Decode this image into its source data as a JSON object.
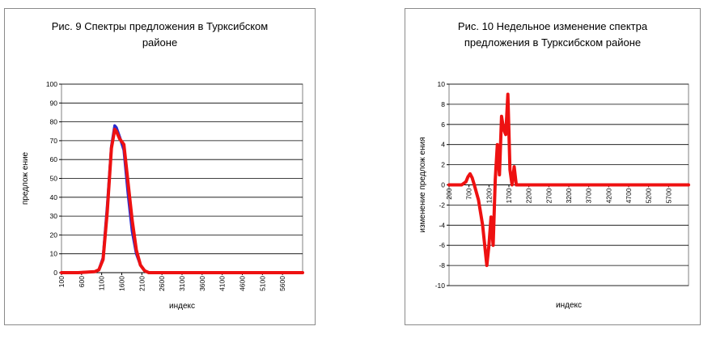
{
  "chart_data": [
    {
      "type": "line",
      "title_lines": [
        "Рис. 9 Спектры предложения в Турксибском",
        "районе"
      ],
      "xlabel": "индекс",
      "ylabel": "предлож ение",
      "ylim": [
        0,
        100
      ],
      "yticks": [
        "0",
        "10",
        "20",
        "30",
        "40",
        "50",
        "60",
        "70",
        "80",
        "90",
        "100"
      ],
      "xlim": [
        100,
        5900
      ],
      "xticks": [
        "100",
        "600",
        "1100",
        "1600",
        "2100",
        "2600",
        "3100",
        "3600",
        "4100",
        "4600",
        "5100",
        "5600"
      ],
      "grid": true,
      "colors": [
        "#2b2bcc",
        "#ee1111"
      ],
      "series": [
        {
          "color": "#2b2bcc",
          "x": [
            100,
            500,
            900,
            1000,
            1100,
            1200,
            1300,
            1380,
            1420,
            1500,
            1600,
            1700,
            1800,
            1900,
            2000,
            2100,
            2200,
            2600,
            3600,
            5900
          ],
          "y": [
            0,
            0,
            0.5,
            1.5,
            8,
            35,
            67,
            78,
            77,
            72,
            65,
            42,
            22,
            10,
            4,
            1,
            0,
            0,
            0,
            0
          ]
        },
        {
          "color": "#ee1111",
          "x": [
            100,
            500,
            900,
            1000,
            1100,
            1200,
            1300,
            1380,
            1420,
            1500,
            1600,
            1700,
            1800,
            1900,
            2000,
            2100,
            2200,
            2600,
            3600,
            5900
          ],
          "y": [
            0,
            0,
            0.5,
            1.5,
            7,
            32,
            66,
            76,
            75,
            71,
            68,
            48,
            28,
            12,
            4,
            1,
            0,
            0,
            0,
            0
          ]
        }
      ]
    },
    {
      "type": "line",
      "title_lines": [
        "Рис. 10 Недельное изменение спектра",
        "предложения в Турксибском районе"
      ],
      "xlabel": "индекс",
      "ylabel": "изменение предлож ения",
      "ylim": [
        -10,
        10
      ],
      "yticks": [
        "-10",
        "-8",
        "-6",
        "-4",
        "-2",
        "0",
        "2",
        "4",
        "6",
        "8",
        "10"
      ],
      "xlim": [
        200,
        5900
      ],
      "xticks": [
        "200",
        "700",
        "1200",
        "1700",
        "2200",
        "2700",
        "3200",
        "3700",
        "4200",
        "4700",
        "5200",
        "5700"
      ],
      "grid": true,
      "colors": [
        "#ee1111"
      ],
      "series": [
        {
          "color": "#ee1111",
          "x": [
            200,
            400,
            500,
            600,
            650,
            700,
            750,
            800,
            900,
            1000,
            1050,
            1100,
            1150,
            1200,
            1250,
            1300,
            1350,
            1400,
            1450,
            1500,
            1550,
            1600,
            1650,
            1700,
            1750,
            1800,
            1850,
            1900,
            1950,
            2000,
            2200,
            3000,
            4000,
            5000,
            5900
          ],
          "y": [
            0,
            0,
            0,
            0.3,
            0.8,
            1.1,
            0.7,
            0,
            -1.5,
            -4,
            -6,
            -8,
            -6,
            -3.2,
            -6,
            0.5,
            4,
            1,
            6.8,
            5.5,
            5,
            9,
            1.5,
            0,
            1.8,
            0,
            0,
            0,
            0,
            0,
            0,
            0,
            0,
            0,
            0
          ]
        }
      ]
    }
  ]
}
